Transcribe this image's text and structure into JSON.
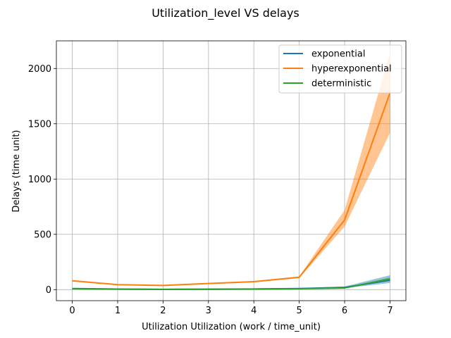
{
  "chart_data": {
    "type": "line",
    "title": "Utilization_level VS delays",
    "xlabel": "Utilization Utilization (work / time_unit)",
    "ylabel": "Delays (time unit)",
    "x": [
      0,
      1,
      2,
      3,
      4,
      5,
      6,
      7
    ],
    "xlim": [
      -0.35,
      7.35
    ],
    "ylim": [
      -100,
      2250
    ],
    "xticks": [
      0,
      1,
      2,
      3,
      4,
      5,
      6,
      7
    ],
    "yticks": [
      0,
      500,
      1000,
      1500,
      2000
    ],
    "grid": true,
    "legend_position": "top-right",
    "series": [
      {
        "name": "exponential",
        "color": "#1f77b4",
        "values": [
          10,
          5,
          3,
          4,
          6,
          10,
          20,
          85
        ],
        "lower": [
          8,
          4,
          2,
          3,
          4,
          7,
          14,
          60
        ],
        "upper": [
          12,
          7,
          5,
          6,
          9,
          14,
          28,
          130
        ]
      },
      {
        "name": "hyperexponential",
        "color": "#ff7f0e",
        "values": [
          80,
          45,
          38,
          55,
          72,
          112,
          630,
          1780
        ],
        "lower": [
          74,
          40,
          34,
          50,
          66,
          104,
          570,
          1420
        ],
        "upper": [
          86,
          50,
          42,
          60,
          78,
          120,
          720,
          2140
        ]
      },
      {
        "name": "deterministic",
        "color": "#2ca02c",
        "values": [
          8,
          4,
          2,
          3,
          5,
          8,
          15,
          95
        ],
        "lower": [
          7,
          3,
          1,
          2,
          4,
          6,
          12,
          80
        ],
        "upper": [
          9,
          5,
          3,
          4,
          6,
          10,
          18,
          110
        ]
      }
    ]
  }
}
